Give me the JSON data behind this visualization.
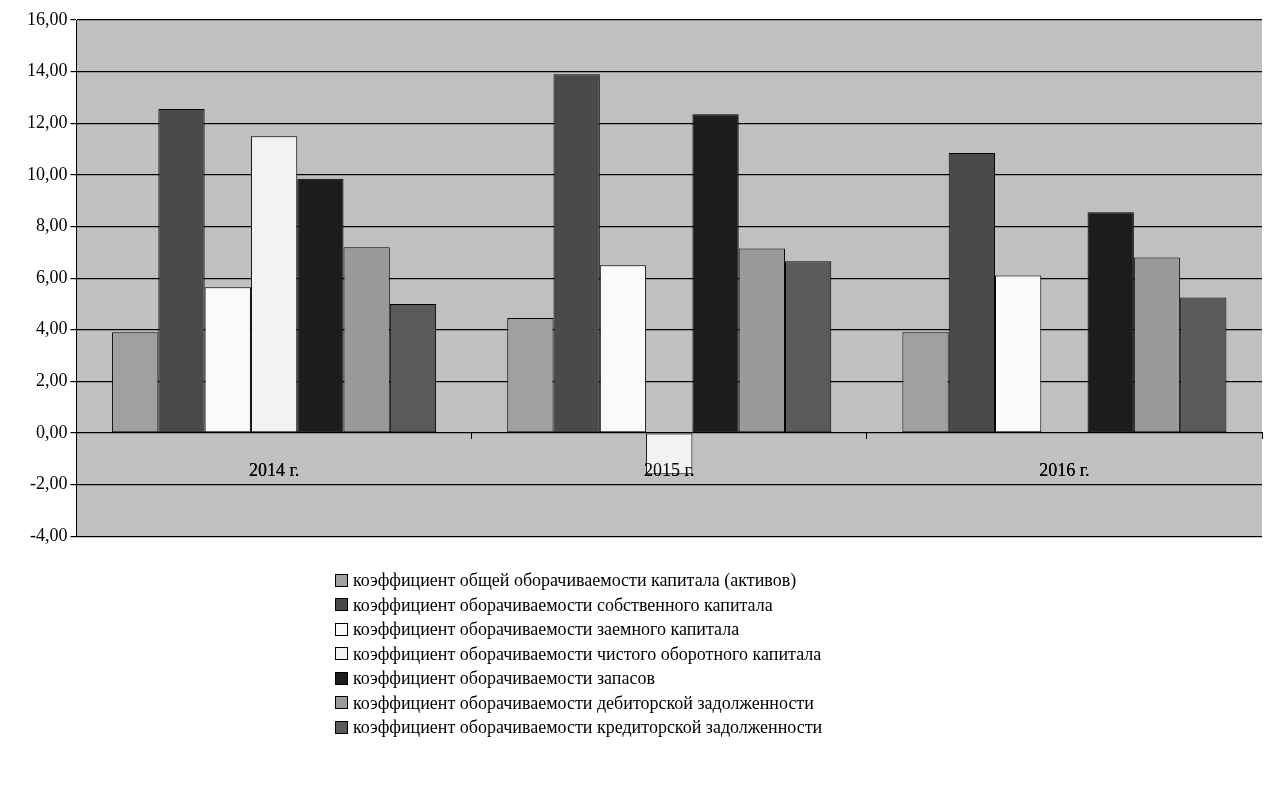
{
  "chart_data": {
    "type": "bar",
    "categories": [
      "2014 г.",
      "2015 г.",
      "2016 г."
    ],
    "series": [
      {
        "name": "коэффициент общей оборачиваемости капитала (активов)",
        "color": "#a0a0a0",
        "values": [
          3.9,
          4.45,
          3.9
        ]
      },
      {
        "name": "коэффициент оборачиваемости собственного капитала",
        "color": "#4a4a4a",
        "values": [
          12.55,
          13.9,
          10.85
        ]
      },
      {
        "name": "коэффициент оборачиваемости заемного капитала",
        "color": "#fafafa",
        "values": [
          5.65,
          6.5,
          6.1
        ]
      },
      {
        "name": "коэффициент оборачиваемости чистого оборотного капитала",
        "color": "#f2f2f2",
        "values": [
          11.5,
          -1.6,
          null
        ]
      },
      {
        "name": "коэффициент оборачиваемости запасов",
        "color": "#1c1c1c",
        "values": [
          9.85,
          12.35,
          8.55
        ]
      },
      {
        "name": "коэффициент оборачиваемости дебиторской задолженности",
        "color": "#9a9a9a",
        "values": [
          7.2,
          7.15,
          6.8
        ]
      },
      {
        "name": "коэффициент оборачиваемости кредиторской задолженности",
        "color": "#5a5a5a",
        "values": [
          5.0,
          6.65,
          5.25
        ]
      }
    ],
    "ylim": [
      -4,
      16
    ],
    "yticks": [
      {
        "value": -4,
        "label": "-4,00"
      },
      {
        "value": -2,
        "label": "-2,00"
      },
      {
        "value": 0,
        "label": "0,00"
      },
      {
        "value": 2,
        "label": "2,00"
      },
      {
        "value": 4,
        "label": "4,00"
      },
      {
        "value": 6,
        "label": "6,00"
      },
      {
        "value": 8,
        "label": "8,00"
      },
      {
        "value": 10,
        "label": "10,00"
      },
      {
        "value": 12,
        "label": "12,00"
      },
      {
        "value": 14,
        "label": "14,00"
      },
      {
        "value": 16,
        "label": "16,00"
      }
    ],
    "grid": "y",
    "legend": "bottom"
  }
}
